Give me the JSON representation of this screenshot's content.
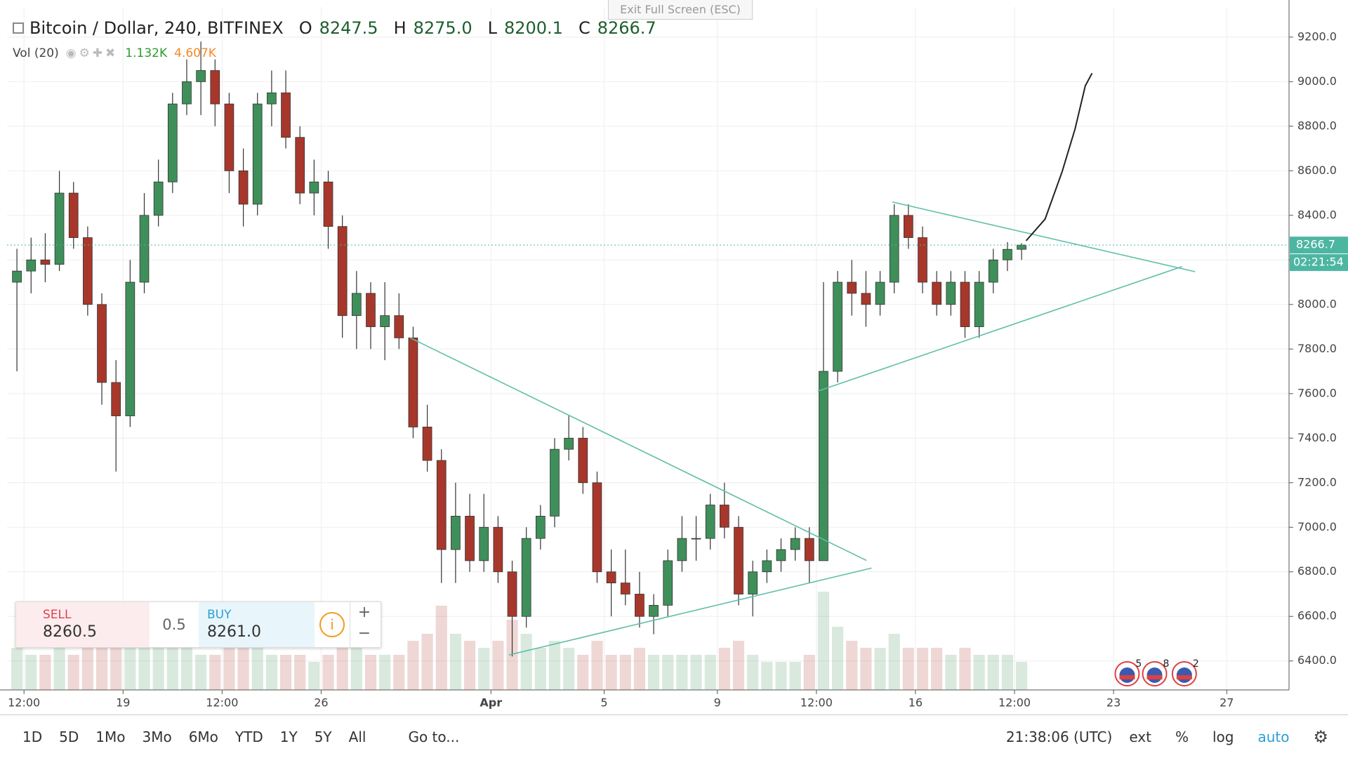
{
  "window_banner": "Exit Full Screen (ESC)",
  "chart_data": {
    "type": "candlestick",
    "title": "Bitcoin / Dollar, 240, BITFINEX",
    "legend_keys": [
      "O",
      "H",
      "L",
      "C"
    ],
    "legend_value_labels": [
      "8247.5",
      "8275.0",
      "8200.1",
      "8266.7"
    ],
    "volume_study": {
      "title": "Vol (20)",
      "value_labels": [
        "1.132K",
        "4.607K"
      ],
      "colors": [
        "#2e9a2e",
        "#f5892a"
      ]
    },
    "x": [
      15,
      15.5,
      16,
      16.5,
      17,
      17.5,
      18,
      18.5,
      19,
      19.5,
      20,
      20.5,
      21,
      21.5,
      22,
      22.5,
      23,
      23.5,
      24,
      24.5,
      25,
      25.5,
      26,
      26.5,
      27,
      27.5,
      28,
      28.5,
      29,
      29.5,
      30,
      30.5,
      31,
      31.5,
      32,
      32.5,
      33,
      33.5,
      34,
      34.5,
      35,
      35.5,
      36,
      36.5,
      37,
      37.5,
      38,
      38.5,
      39,
      39.5,
      40,
      40.5,
      41,
      41.5,
      42,
      42.5,
      43,
      43.5,
      44,
      44.5,
      45,
      45.5,
      46,
      46.5,
      47,
      47.5,
      48,
      48.5,
      49,
      49.5,
      50,
      50.5
    ],
    "open": [
      8100,
      8150,
      8200,
      8180,
      8500,
      8300,
      8000,
      7650,
      7500,
      8100,
      8400,
      8550,
      8900,
      9000,
      9050,
      8900,
      8600,
      8450,
      8900,
      8950,
      8750,
      8500,
      8550,
      8350,
      7950,
      8050,
      7900,
      7950,
      7850,
      7450,
      7300,
      6900,
      7050,
      6850,
      7000,
      6800,
      6600,
      6950,
      7050,
      7350,
      7400,
      7200,
      6800,
      6750,
      6700,
      6600,
      6650,
      6850,
      6950,
      6950,
      7100,
      7000,
      6700,
      6800,
      6850,
      6900,
      6950,
      6850,
      7700,
      8100,
      8050,
      8000,
      8100,
      8400,
      8300,
      8100,
      8000,
      8100,
      7900,
      8100,
      8200,
      8247.5
    ],
    "high": [
      8250,
      8300,
      8320,
      8600,
      8550,
      8350,
      8050,
      7750,
      8200,
      8500,
      8650,
      8950,
      9100,
      9180,
      9100,
      8950,
      8700,
      8950,
      9050,
      9050,
      8800,
      8650,
      8600,
      8400,
      8150,
      8100,
      8100,
      8050,
      7900,
      7550,
      7350,
      7200,
      7150,
      7150,
      7050,
      6850,
      7000,
      7100,
      7400,
      7500,
      7450,
      7250,
      6900,
      6900,
      6800,
      6700,
      6900,
      7050,
      7050,
      7150,
      7200,
      7050,
      6850,
      6900,
      6950,
      7000,
      7000,
      8100,
      8150,
      8200,
      8150,
      8150,
      8450,
      8450,
      8350,
      8150,
      8150,
      8150,
      8150,
      8250,
      8280,
      8275
    ],
    "low": [
      7700,
      8050,
      8100,
      8150,
      8250,
      7950,
      7550,
      7250,
      7450,
      8050,
      8350,
      8500,
      8850,
      8850,
      8800,
      8500,
      8350,
      8400,
      8800,
      8700,
      8450,
      8400,
      8250,
      7850,
      7800,
      7800,
      7750,
      7800,
      7400,
      7250,
      6750,
      6750,
      6800,
      6800,
      6750,
      6420,
      6550,
      6900,
      7000,
      7300,
      7150,
      6750,
      6600,
      6650,
      6550,
      6520,
      6600,
      6800,
      6850,
      6900,
      6950,
      6650,
      6600,
      6750,
      6800,
      6850,
      6750,
      6850,
      7650,
      7950,
      7900,
      7950,
      8050,
      8250,
      8050,
      7950,
      7950,
      7850,
      7850,
      8050,
      8150,
      8200.1
    ],
    "close": [
      8150,
      8200,
      8180,
      8500,
      8300,
      8000,
      7650,
      7500,
      8100,
      8400,
      8550,
      8900,
      9000,
      9050,
      8900,
      8600,
      8450,
      8900,
      8950,
      8750,
      8500,
      8550,
      8350,
      7950,
      8050,
      7900,
      7950,
      7850,
      7450,
      7300,
      6900,
      7050,
      6850,
      7000,
      6800,
      6600,
      6950,
      7050,
      7350,
      7400,
      7200,
      6800,
      6750,
      6700,
      6600,
      6650,
      6850,
      6950,
      6950,
      7100,
      7000,
      6700,
      6800,
      6850,
      6900,
      6950,
      6850,
      7700,
      8100,
      8050,
      8000,
      8100,
      8400,
      8300,
      8100,
      8000,
      8100,
      7900,
      8100,
      8200,
      8247.5,
      8266.7
    ],
    "volume": [
      6,
      5,
      5,
      7,
      5,
      6,
      8,
      9,
      10,
      7,
      6,
      7,
      6,
      5,
      5,
      6,
      6,
      7,
      5,
      5,
      5,
      4,
      5,
      7,
      6,
      5,
      5,
      5,
      7,
      8,
      12,
      8,
      7,
      6,
      7,
      10,
      8,
      6,
      7,
      6,
      5,
      7,
      5,
      5,
      6,
      5,
      5,
      5,
      5,
      5,
      6,
      7,
      5,
      4,
      4,
      4,
      5,
      14,
      9,
      7,
      6,
      6,
      8,
      6,
      6,
      6,
      5,
      6,
      5,
      5,
      5,
      4
    ],
    "up_color": "#3f8f5a",
    "down_color": "#a8372b",
    "xlim": [
      14.9,
      60.2
    ],
    "xticks": [
      {
        "value": 15.5,
        "label": "12:00"
      },
      {
        "value": 19,
        "label": "19"
      },
      {
        "value": 22.5,
        "label": "12:00"
      },
      {
        "value": 26,
        "label": "26"
      },
      {
        "value": 32,
        "label": "Apr"
      },
      {
        "value": 36,
        "label": "5"
      },
      {
        "value": 40,
        "label": "9"
      },
      {
        "value": 43.5,
        "label": "12:00"
      },
      {
        "value": 47,
        "label": "16"
      },
      {
        "value": 50.5,
        "label": "12:00"
      },
      {
        "value": 54,
        "label": "23"
      },
      {
        "value": 58,
        "label": "27"
      }
    ],
    "ylim": [
      6270,
      9335
    ],
    "yticks": [
      {
        "value": 6400,
        "label": "6400.0"
      },
      {
        "value": 6600,
        "label": "6600.0"
      },
      {
        "value": 6800,
        "label": "6800.0"
      },
      {
        "value": 7000,
        "label": "7000.0"
      },
      {
        "value": 7200,
        "label": "7200.0"
      },
      {
        "value": 7400,
        "label": "7400.0"
      },
      {
        "value": 7600,
        "label": "7600.0"
      },
      {
        "value": 7800,
        "label": "7800.0"
      },
      {
        "value": 8000,
        "label": "8000.0"
      },
      {
        "value": 8200,
        "label": "8200.0"
      },
      {
        "value": 8400,
        "label": "8400.0"
      },
      {
        "value": 8600,
        "label": "8600.0"
      },
      {
        "value": 8800,
        "label": "8800.0"
      },
      {
        "value": 9000,
        "label": "9000.0"
      },
      {
        "value": 9200,
        "label": "9200.0"
      }
    ],
    "grid": true,
    "countdown": "02:21:54",
    "last_price_color": "#4db6a3",
    "trendline_color": "#5fbfa8",
    "trendlines": [
      {
        "x": [
          29.15,
          45.27
        ],
        "y": [
          7850,
          6851
        ]
      },
      {
        "x": [
          32.64,
          45.45
        ],
        "y": [
          6427,
          6817
        ]
      },
      {
        "x": [
          43.55,
          56.42
        ],
        "y": [
          7611,
          8170
        ]
      },
      {
        "x": [
          46.18,
          56.88
        ],
        "y": [
          8460,
          8147
        ]
      }
    ],
    "drawing": {
      "color": "#222222",
      "x": [
        50.91,
        51.58,
        52.18,
        52.64,
        53.0,
        53.24
      ],
      "y": [
        8286,
        8383,
        8595,
        8788,
        8981,
        9038
      ]
    },
    "events": {
      "x": [
        54.48,
        55.45,
        56.5
      ],
      "labels": [
        "5",
        "8",
        "2"
      ]
    }
  },
  "order_panel": {
    "sell_label": "SELL",
    "sell_price": "8260.5",
    "quantity": "0.5",
    "buy_label": "BUY",
    "buy_price": "8261.0"
  },
  "toolbar": {
    "ranges": [
      "1D",
      "5D",
      "1Mo",
      "3Mo",
      "6Mo",
      "YTD",
      "1Y",
      "5Y",
      "All"
    ],
    "goto": "Go to...",
    "clock": "21:38:06 (UTC)",
    "options": [
      "ext",
      "%",
      "log",
      "auto"
    ]
  }
}
